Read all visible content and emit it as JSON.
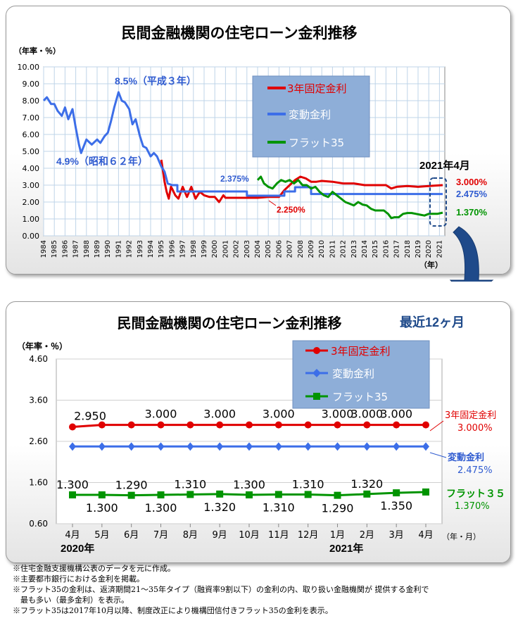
{
  "colors": {
    "fixed": "#e00000",
    "variable": "#3c6ee8",
    "flat": "#009400",
    "grid": "#bfd4e8",
    "plot_bg": "#ffffff",
    "legend_bg": "#8eaed8",
    "arrow": "#1f4a8a",
    "label_blue": "#2f5bd0"
  },
  "top": {
    "title": "民間金融機関の住宅ローン金利推移",
    "unit": "（年率・％）",
    "year_unit": "（年）",
    "highlight_label": "2021年4月",
    "legend": {
      "fixed": "3年固定金利",
      "variable": "変動金利",
      "flat": "フラット35"
    },
    "annotations": {
      "peak": "8.5%（平成３年）",
      "low": "4.9%（昭和６２年）",
      "v2375": "2.375%",
      "f2250": "2.250%"
    },
    "end_labels": {
      "fixed": "3.000%",
      "variable": "2.475%",
      "flat": "1.370%"
    }
  },
  "bottom": {
    "title": "民間金融機関の住宅ローン金利推移",
    "subtitle": "最近12ヶ月",
    "unit": "（年率・％）",
    "axis_unit": "（年・月）",
    "year_2020": "2020年",
    "year_2021": "2021年",
    "legend": {
      "fixed": "3年固定金利",
      "variable": "変動金利",
      "flat": "フラット35"
    },
    "right_labels": {
      "fixed_name": "3年固定金利",
      "fixed_value": "3.000%",
      "variable_name": "変動金利",
      "variable_value": "2.475%",
      "flat_name": "フラット３５",
      "flat_value": "1.370%"
    }
  },
  "notes": [
    "※住宅金融支援機構公表のデータを元に作成。",
    "※主要都市銀行における金利を掲載。",
    "※フラット35の金利は、返済期間21～35年タイプ（融資率9割以下）の金利の内、取り扱い金融機関が 提供する金利で",
    "　最も多い（最多金利）を表示。",
    "※フラット35は2017年10月以降、制度改正により機構団信付きフラット35の金利を表示。"
  ],
  "chart_data": [
    {
      "type": "line",
      "title": "民間金融機関の住宅ローン金利推移",
      "ylabel": "（年率・％）",
      "xlabel": "（年）",
      "ylim": [
        0,
        10
      ],
      "yticks": [
        "0.00",
        "1.00",
        "2.00",
        "3.00",
        "4.00",
        "5.00",
        "6.00",
        "7.00",
        "8.00",
        "9.00",
        "10.00"
      ],
      "x_tick_labels": [
        "1984",
        "1985",
        "1986",
        "1987",
        "1988",
        "1989",
        "1990",
        "1991",
        "1992",
        "1993",
        "1994",
        "1995",
        "1996",
        "1997",
        "1998",
        "1999",
        "2000",
        "2001",
        "2002",
        "2003",
        "2004",
        "2005",
        "2006",
        "2007",
        "2008",
        "2009",
        "2010",
        "2011",
        "2012",
        "2013",
        "2014",
        "2015",
        "2016",
        "2017",
        "2018",
        "2019",
        "2020",
        "2021"
      ],
      "grid": true,
      "legend_position": "top-right",
      "series": [
        {
          "name": "3年固定金利",
          "x": [
            1995.0,
            1995.3,
            1995.5,
            1995.7,
            1995.9,
            1996.0,
            1996.3,
            1996.6,
            1997.0,
            1997.4,
            1997.8,
            1998.2,
            1998.6,
            1999.0,
            1999.5,
            2000.0,
            2000.4,
            2000.8,
            2001.0,
            2002.0,
            2003.0,
            2004.0,
            2005.0,
            2006.0,
            2006.5,
            2007.0,
            2007.5,
            2008.0,
            2008.5,
            2009.0,
            2009.5,
            2010.0,
            2011.0,
            2012.0,
            2013.0,
            2014.0,
            2015.0,
            2016.0,
            2016.5,
            2017.0,
            2018.0,
            2019.0,
            2020.0,
            2021.3
          ],
          "values": [
            4.5,
            3.2,
            2.6,
            2.2,
            2.9,
            2.8,
            2.4,
            2.2,
            2.9,
            2.3,
            2.9,
            2.2,
            2.6,
            2.4,
            2.3,
            2.3,
            2.0,
            2.4,
            2.25,
            2.25,
            2.25,
            2.25,
            2.3,
            2.3,
            2.7,
            3.0,
            3.3,
            3.5,
            3.4,
            3.2,
            3.2,
            3.25,
            3.2,
            3.1,
            3.1,
            3.0,
            3.0,
            3.0,
            2.8,
            2.9,
            2.95,
            2.9,
            2.95,
            3.0
          ]
        },
        {
          "name": "変動金利",
          "x": [
            1984.0,
            1984.3,
            1984.7,
            1985.0,
            1985.3,
            1985.7,
            1986.0,
            1986.3,
            1986.7,
            1987.0,
            1987.3,
            1987.5,
            1988.0,
            1988.5,
            1989.0,
            1989.3,
            1989.7,
            1990.0,
            1990.3,
            1990.6,
            1991.0,
            1991.3,
            1991.6,
            1992.0,
            1992.3,
            1992.6,
            1993.0,
            1993.3,
            1993.6,
            1994.0,
            1994.3,
            1994.6,
            1995.0,
            1995.3,
            1995.6,
            1996.0,
            1996.5,
            2001.0,
            2003.0,
            2004.0,
            2005.0,
            2006.0,
            2006.5,
            2007.0,
            2007.5,
            2008.0,
            2008.5,
            2009.0,
            2021.3
          ],
          "values": [
            8.0,
            8.2,
            7.8,
            7.8,
            7.4,
            7.1,
            7.6,
            6.9,
            7.5,
            6.4,
            5.4,
            4.9,
            5.7,
            5.4,
            5.7,
            5.5,
            5.9,
            6.1,
            6.8,
            7.6,
            8.5,
            8.0,
            7.9,
            7.5,
            6.6,
            6.9,
            5.9,
            5.3,
            5.2,
            4.7,
            4.9,
            4.7,
            4.1,
            3.8,
            3.1,
            3.0,
            2.625,
            2.625,
            2.375,
            2.375,
            2.375,
            2.375,
            2.625,
            2.625,
            2.875,
            2.875,
            2.875,
            2.475,
            2.475
          ]
        },
        {
          "name": "フラット35",
          "x": [
            2004.0,
            2004.3,
            2004.6,
            2005.0,
            2005.4,
            2005.8,
            2006.2,
            2006.6,
            2007.0,
            2007.4,
            2007.8,
            2008.2,
            2008.6,
            2009.0,
            2009.4,
            2009.8,
            2010.2,
            2010.6,
            2011.0,
            2011.4,
            2011.8,
            2012.2,
            2012.6,
            2013.0,
            2013.4,
            2013.8,
            2014.2,
            2014.6,
            2015.0,
            2015.4,
            2015.8,
            2016.2,
            2016.5,
            2016.8,
            2017.2,
            2017.6,
            2018.0,
            2018.4,
            2018.8,
            2019.2,
            2019.6,
            2020.0,
            2020.4,
            2020.8,
            2021.3
          ],
          "values": [
            3.3,
            3.5,
            3.1,
            2.9,
            2.8,
            3.1,
            3.3,
            3.2,
            3.3,
            3.1,
            3.3,
            3.0,
            3.0,
            2.8,
            2.9,
            2.6,
            2.4,
            2.3,
            2.6,
            2.4,
            2.2,
            2.0,
            1.9,
            1.8,
            2.0,
            1.85,
            1.8,
            1.6,
            1.5,
            1.5,
            1.5,
            1.3,
            1.05,
            1.1,
            1.1,
            1.3,
            1.35,
            1.35,
            1.3,
            1.25,
            1.2,
            1.3,
            1.3,
            1.3,
            1.37
          ]
        }
      ]
    },
    {
      "type": "line",
      "title": "民間金融機関の住宅ローン金利推移",
      "subtitle": "最近12ヶ月",
      "ylabel": "（年率・％）",
      "xlabel": "（年・月）",
      "ylim": [
        0.6,
        4.6
      ],
      "yticks": [
        "0.60",
        "1.60",
        "2.60",
        "3.60",
        "4.60"
      ],
      "categories": [
        "4月",
        "5月",
        "6月",
        "7月",
        "8月",
        "9月",
        "10月",
        "11月",
        "12月",
        "1月",
        "2月",
        "3月",
        "4月"
      ],
      "grid": true,
      "legend_position": "top-right",
      "series": [
        {
          "name": "3年固定金利",
          "values": [
            2.95,
            3.0,
            3.0,
            3.0,
            3.0,
            3.0,
            3.0,
            3.0,
            3.0,
            3.0,
            3.0,
            3.0,
            3.0
          ],
          "labels": [
            "2.950",
            "",
            "",
            "3.000",
            "",
            "3.000",
            "",
            "3.000",
            "",
            "3.000",
            "3.000",
            "3.000",
            ""
          ]
        },
        {
          "name": "変動金利",
          "values": [
            2.475,
            2.475,
            2.475,
            2.475,
            2.475,
            2.475,
            2.475,
            2.475,
            2.475,
            2.475,
            2.475,
            2.475,
            2.475
          ],
          "labels": []
        },
        {
          "name": "フラット35",
          "values": [
            1.3,
            1.3,
            1.29,
            1.3,
            1.31,
            1.32,
            1.3,
            1.31,
            1.31,
            1.29,
            1.32,
            1.35,
            1.37
          ],
          "labels": [
            "1.300",
            "1.300",
            "1.290",
            "1.300",
            "1.310",
            "1.320",
            "1.300",
            "1.310",
            "1.310",
            "1.290",
            "1.320",
            "1.350",
            ""
          ]
        }
      ]
    }
  ]
}
